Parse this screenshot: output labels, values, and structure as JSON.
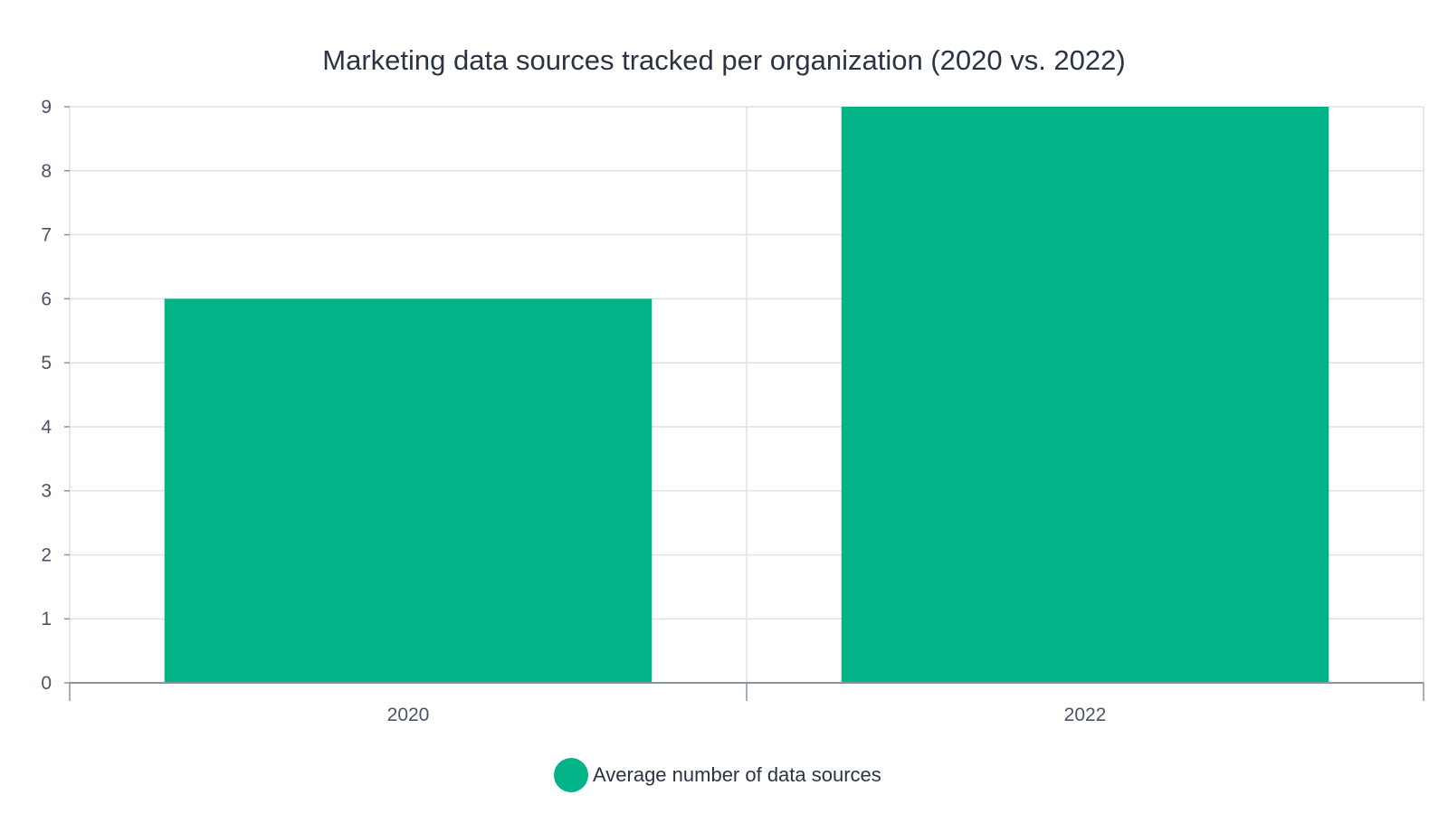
{
  "chart_data": {
    "type": "bar",
    "title": "Marketing data sources tracked per organization (2020 vs. 2022)",
    "xlabel": "",
    "ylabel": "",
    "categories": [
      "2020",
      "2022"
    ],
    "series": [
      {
        "name": "Average number of data sources",
        "values": [
          6,
          9
        ],
        "color": "#03b388"
      }
    ],
    "ylim": [
      0,
      9
    ],
    "yticks": [
      "0",
      "1",
      "2",
      "3",
      "4",
      "5",
      "6",
      "7",
      "8",
      "9"
    ],
    "grid": true,
    "legend_position": "bottom-center"
  },
  "colors": {
    "bar": "#03b388",
    "grid": "#dde1ea",
    "axis": "#8a93a3",
    "title": "#2a3444",
    "tick": "#4a5466"
  }
}
